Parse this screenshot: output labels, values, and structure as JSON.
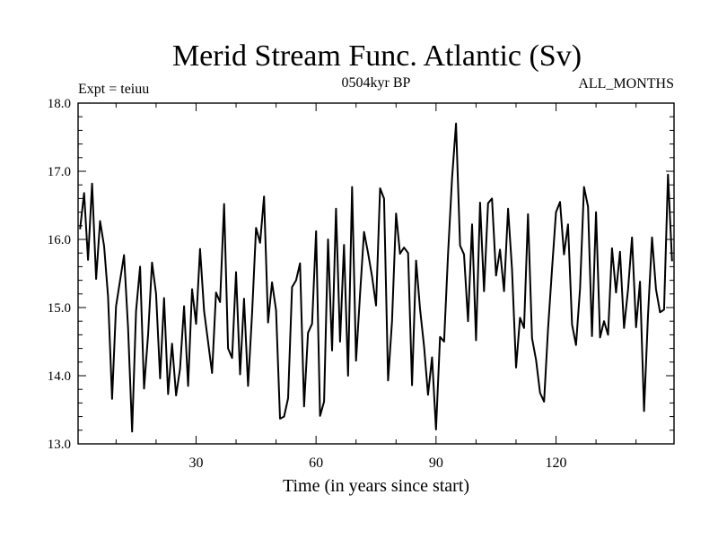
{
  "chart_data": {
    "type": "line",
    "title": "Merid Stream Func. Atlantic (Sv)",
    "subtitle_left": "Expt = teiuu",
    "subtitle_center": "0504kyr BP",
    "subtitle_right": "ALL_MONTHS",
    "xlabel": "Time (in years since start)",
    "ylabel": "",
    "xlim": [
      0.5,
      149.5
    ],
    "ylim": [
      13.0,
      18.0
    ],
    "xticks": [
      30,
      60,
      90,
      120
    ],
    "yticks": [
      13.0,
      14.0,
      15.0,
      16.0,
      17.0,
      18.0
    ],
    "ytick_labels": [
      "13.0",
      "14.0",
      "15.0",
      "16.0",
      "17.0",
      "18.0"
    ],
    "series": [
      {
        "name": "Merid Stream Func. Atlantic",
        "x_start": 1,
        "x_step": 1,
        "values": [
          16.15,
          16.68,
          15.7,
          16.82,
          15.42,
          16.27,
          15.9,
          15.16,
          13.66,
          15.02,
          15.4,
          15.77,
          14.7,
          13.18,
          14.95,
          15.6,
          13.81,
          14.6,
          15.66,
          15.2,
          13.96,
          15.14,
          13.73,
          14.47,
          13.71,
          14.1,
          15.02,
          13.85,
          15.27,
          14.76,
          15.86,
          14.95,
          14.5,
          14.04,
          15.22,
          15.08,
          16.52,
          14.4,
          14.26,
          15.52,
          14.02,
          15.13,
          13.85,
          14.92,
          16.17,
          15.95,
          16.63,
          14.78,
          15.37,
          14.96,
          13.37,
          13.4,
          13.67,
          15.3,
          15.4,
          15.65,
          13.55,
          14.63,
          14.76,
          16.12,
          13.41,
          13.62,
          16.0,
          14.37,
          16.45,
          14.5,
          15.92,
          14.0,
          16.77,
          14.22,
          15.2,
          16.11,
          15.8,
          15.46,
          15.03,
          16.75,
          16.6,
          13.93,
          14.8,
          16.38,
          15.79,
          15.88,
          15.8,
          13.86,
          15.69,
          14.98,
          14.43,
          13.72,
          14.27,
          13.21,
          14.57,
          14.5,
          15.78,
          16.9,
          17.7,
          15.91,
          15.78,
          14.8,
          16.22,
          14.52,
          16.54,
          15.24,
          16.53,
          16.6,
          15.47,
          15.85,
          15.24,
          16.45,
          15.56,
          14.12,
          14.85,
          14.7,
          16.37,
          14.55,
          14.23,
          13.75,
          13.62,
          14.68,
          15.57,
          16.4,
          16.55,
          15.78,
          16.22,
          14.75,
          14.45,
          15.28,
          16.77,
          16.48,
          14.58,
          16.4,
          14.56,
          14.8,
          14.6,
          15.87,
          15.22,
          15.82,
          14.7,
          15.27,
          16.03,
          14.71,
          15.38,
          13.48,
          14.88,
          16.03,
          15.27,
          14.93,
          14.97,
          16.95,
          15.68
        ]
      }
    ]
  }
}
